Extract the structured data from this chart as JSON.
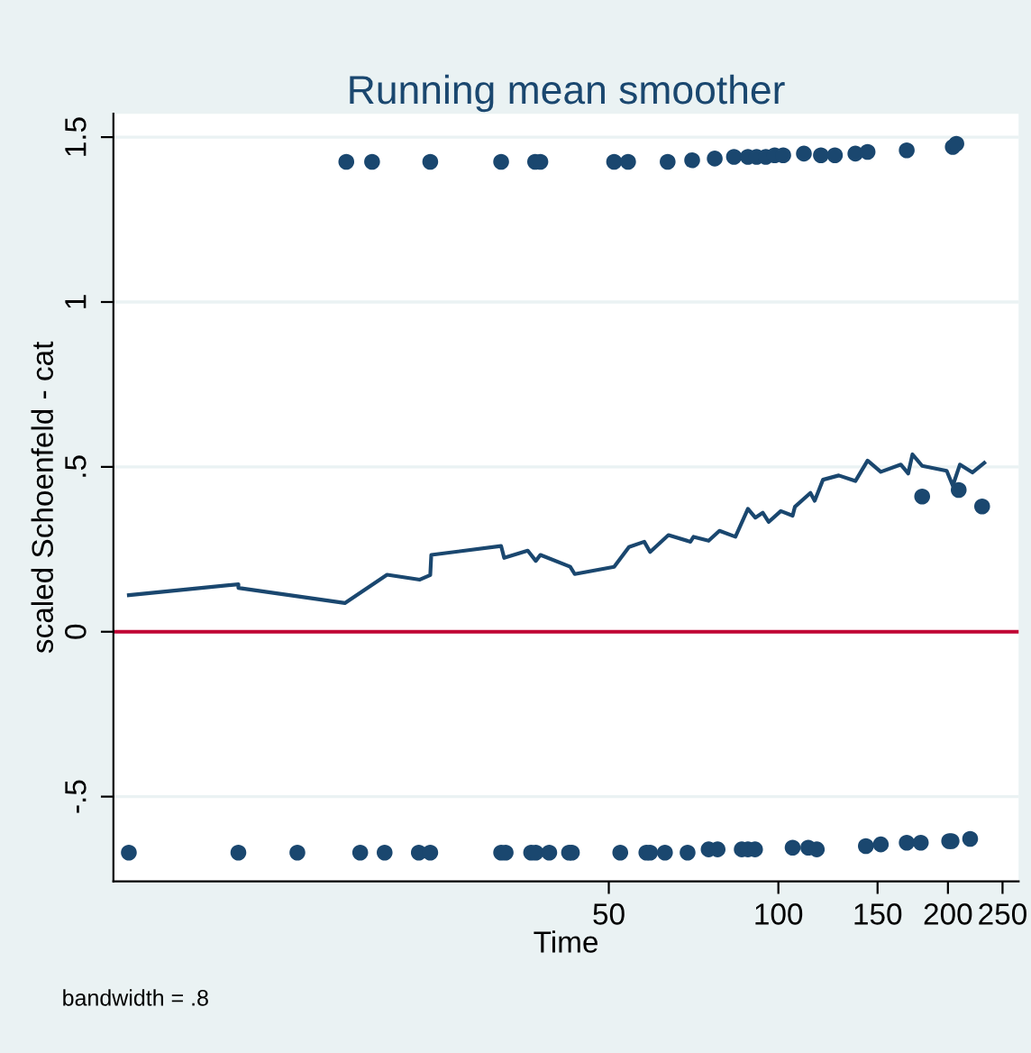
{
  "chart_data": {
    "type": "scatter",
    "title": "Running mean smoother",
    "xlabel": "Time",
    "ylabel": "scaled Schoenfeld - cat",
    "annotations": [
      "bandwidth = .8"
    ],
    "log": "x",
    "xlim": [
      6.6,
      267
    ],
    "xticks": [
      50,
      100,
      150,
      200,
      250
    ],
    "ylim": [
      -0.757,
      1.571
    ],
    "yticks": [
      {
        "value": -0.5,
        "label": "-.5"
      },
      {
        "value": 0,
        "label": "0"
      },
      {
        "value": 0.5,
        "label": ".5"
      },
      {
        "value": 1,
        "label": "1"
      },
      {
        "value": 1.5,
        "label": "1.5"
      }
    ],
    "grid": "y",
    "legend": false,
    "ref_lines": [
      {
        "axis": "y",
        "value": 0,
        "color": "#c10534"
      }
    ],
    "series": [
      {
        "marker": "circle",
        "color": "#1a476f",
        "x": [
          7.03,
          11.0,
          14.0,
          18.1,
          20.0,
          23.0,
          24.1,
          32.2,
          32.8,
          36.4,
          37.1,
          39.2,
          42.5,
          43.0,
          52.4,
          58.3,
          59.2,
          62.9,
          69.0,
          75.2,
          78.0,
          86.1,
          88.3,
          90.9,
          106,
          113,
          117,
          143,
          152,
          169,
          179,
          201,
          203,
          219,
          17.1,
          19.0,
          24.1,
          32.2,
          37.0,
          37.8,
          51.1,
          54.1,
          63.6,
          70.3,
          77.1,
          83.4,
          88.3,
          91.5,
          95.0,
          98.5,
          102,
          111,
          119,
          126,
          137,
          144,
          169,
          204,
          207,
          180,
          209,
          230
        ],
        "values": [
          -0.67,
          -0.67,
          -0.67,
          -0.67,
          -0.67,
          -0.67,
          -0.67,
          -0.67,
          -0.67,
          -0.67,
          -0.67,
          -0.67,
          -0.67,
          -0.67,
          -0.67,
          -0.67,
          -0.67,
          -0.67,
          -0.67,
          -0.66,
          -0.66,
          -0.66,
          -0.66,
          -0.66,
          -0.655,
          -0.655,
          -0.66,
          -0.65,
          -0.645,
          -0.64,
          -0.64,
          -0.635,
          -0.635,
          -0.628,
          1.425,
          1.425,
          1.425,
          1.425,
          1.425,
          1.425,
          1.425,
          1.425,
          1.425,
          1.43,
          1.435,
          1.44,
          1.44,
          1.44,
          1.44,
          1.445,
          1.445,
          1.45,
          1.445,
          1.445,
          1.45,
          1.455,
          1.46,
          1.47,
          1.48,
          0.41,
          0.43,
          0.38
        ]
      },
      {
        "type": "line",
        "marker": "none",
        "line_style": "solid",
        "color": "#1a476f",
        "x": [
          7.03,
          11.0,
          11.0,
          17.0,
          20.2,
          23.1,
          24.1,
          24.2,
          32.2,
          32.6,
          35.9,
          37.1,
          37.8,
          42.7,
          43.5,
          51.1,
          54.3,
          57.8,
          59.2,
          63.8,
          69.8,
          70.7,
          75.2,
          78.6,
          83.9,
          88.3,
          91.0,
          93.8,
          96.1,
          101,
          106,
          107,
          114,
          116,
          120,
          128,
          137,
          144,
          152,
          165,
          170,
          173,
          180,
          199,
          204,
          210,
          221,
          232
        ],
        "values": [
          0.111,
          0.144,
          0.133,
          0.087,
          0.173,
          0.158,
          0.172,
          0.233,
          0.26,
          0.224,
          0.246,
          0.215,
          0.233,
          0.197,
          0.175,
          0.197,
          0.257,
          0.273,
          0.242,
          0.293,
          0.273,
          0.288,
          0.276,
          0.306,
          0.288,
          0.373,
          0.346,
          0.361,
          0.333,
          0.366,
          0.352,
          0.379,
          0.421,
          0.397,
          0.461,
          0.474,
          0.457,
          0.519,
          0.485,
          0.507,
          0.48,
          0.538,
          0.503,
          0.488,
          0.443,
          0.507,
          0.483,
          0.512
        ]
      }
    ]
  }
}
